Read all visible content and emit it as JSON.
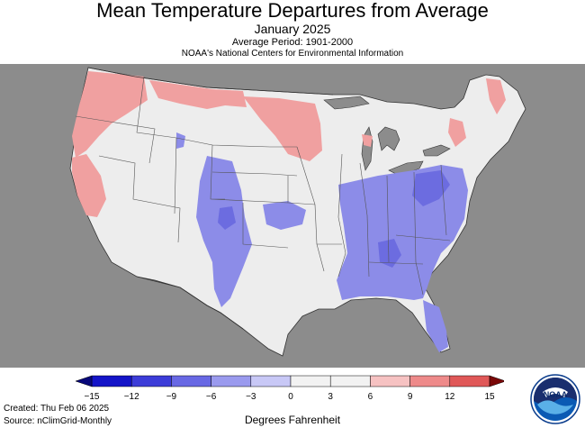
{
  "header": {
    "title": "Mean Temperature Departures from Average",
    "subtitle": "January 2025",
    "average_period": "Average Period: 1901-2000",
    "source": "NOAA's National Centers for Environmental Information"
  },
  "legend": {
    "ticks": [
      "−15",
      "−12",
      "−9",
      "−6",
      "−3",
      "0",
      "3",
      "6",
      "9",
      "12",
      "15"
    ],
    "colors": [
      "#1414c8",
      "#3c3cd8",
      "#6868e4",
      "#9a9aee",
      "#c8c8f6",
      "#f2f2f2",
      "#f2f2f2",
      "#f6c2c2",
      "#ee8a8a",
      "#e05858",
      "#c81e1e"
    ],
    "unit": "Degrees Fahrenheit"
  },
  "footer": {
    "created": "Created: Thu Feb 06 2025",
    "source": "Source: nClimGrid-Monthly"
  },
  "logo": {
    "text": "NOAA"
  },
  "map_colors": {
    "background": "#8c8c8c",
    "land": "#ededed",
    "water": "#8c8c8c",
    "warm_light": "#f4b4b4",
    "warm": "#ec8c8c",
    "cool_light": "#a8a8f0",
    "cool": "#8080e8",
    "border": "#333333"
  }
}
